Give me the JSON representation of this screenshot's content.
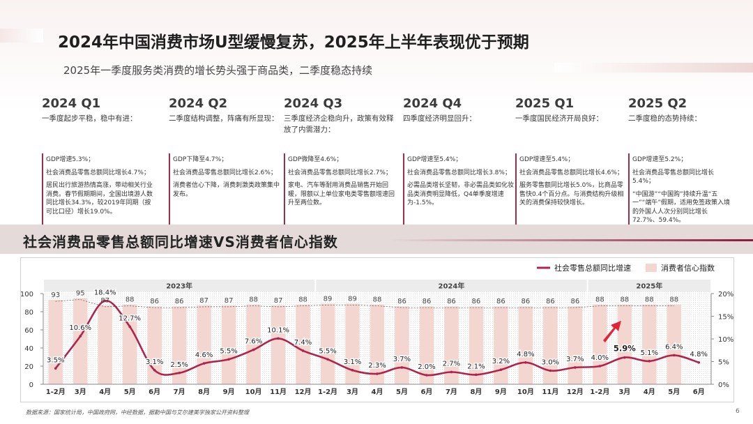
{
  "header": {
    "title": "2024年中国消费市场U型缓慢复苏，2025年上半年表现优于预期",
    "subtitle": "2025年一季度服务类消费的增长势头强于商品类，二季度稳态持续"
  },
  "quarters": [
    {
      "title": "2024 Q1",
      "lead": "一季度起步平稳，稳中有进：",
      "points": [
        "GDP增速5.3%；",
        "社会消费品零售总额同比增长4.7%；",
        "居民出行旅游热情高涨，带动相关行业消费。春节假期期间，全国出境游人数同比增长34.3%，较2019年同期（按可比口径）增长19.0%。"
      ]
    },
    {
      "title": "2024 Q2",
      "lead": "二季度结构调整，阵痛有所显现：",
      "points": [
        "GDP下降至4.7%；",
        "社会消费品零售总额同比增长2.6%；",
        "消费者信心下降，消费刺激类政策集中发布。"
      ]
    },
    {
      "title": "2024 Q3",
      "lead": "三季度经济企稳向升，政策有效释放了内需潜力：",
      "points": [
        "GDP微降至4.6%；",
        "社会消费品零售总额同比增长2.7%；",
        "家电、汽车等耐用消费品销售开始回暖，限额以上单位家电类零售额增速回升至两位数。"
      ]
    },
    {
      "title": "2024 Q4",
      "lead": "四季度经济明显回升：",
      "points": [
        "GDP增速至5.4%；",
        "社会消费品零售总额同比增长3.8%；",
        "必需品类增长坚韧，非必需品类如化妆品类消费明显降低，Q4单季度增速为-1.5%。"
      ]
    },
    {
      "title": "2025 Q1",
      "lead": "一季度国民经济开局良好：",
      "points": [
        "GDP增速至5.4%；",
        "社会消费品零售总额同比增长4.6%；",
        "服务零售额同比增长5.0%，比商品零售快0.4个百分点。与消费结构升级相关的消费保持较快增长。"
      ]
    },
    {
      "title": "2025 Q2",
      "lead": "二季度稳的态势持续：",
      "points": [
        "GDP增速至5.2%；",
        "社会消费品零售总额同比增长5.4%；",
        "“中国游”“中国购”持续升温“五一”“端午”假期，适用免签政策入境的外国人人次分别同比增长72.7%、59.4%。"
      ]
    }
  ],
  "chart_heading": "社会消费品零售总额同比增速VS消费者信心指数",
  "source": "数据来源：国家统计局，中国政府网，中经数据，据勤中国与艾尔建美学独家公开资料整理",
  "page_number": "6",
  "colors": {
    "line": "#b0244c",
    "bar": "#f3d6d0",
    "accent": "#8a1a3a",
    "arrow": "#e0243a"
  },
  "chart_data": {
    "type": "bar",
    "categories": [
      "1-2月",
      "3月",
      "4月",
      "5月",
      "6月",
      "7月",
      "8月",
      "9月",
      "10月",
      "11月",
      "12月",
      "1-2月",
      "3月",
      "4月",
      "5月",
      "6月",
      "7月",
      "8月",
      "9月",
      "10月",
      "11月",
      "12月",
      "1-2月",
      "3月",
      "4月",
      "5月",
      "6月"
    ],
    "year_groups": [
      {
        "label": "2023年",
        "from": 0,
        "to": 10
      },
      {
        "label": "2024年",
        "from": 11,
        "to": 21
      },
      {
        "label": "2025年",
        "from": 22,
        "to": 26
      }
    ],
    "series": [
      {
        "name": "消费者信心指数",
        "type": "bar",
        "axis": "left",
        "values": [
          93,
          95,
          87,
          88,
          86,
          86,
          87,
          87,
          88,
          87,
          88,
          89,
          89,
          88,
          86,
          86,
          86,
          86,
          86,
          86,
          86,
          86,
          88,
          88,
          88,
          88,
          null
        ]
      },
      {
        "name": "社会零售总额同比增速",
        "type": "line",
        "axis": "right",
        "unit": "%",
        "values": [
          3.5,
          10.6,
          18.4,
          12.7,
          3.1,
          2.5,
          4.6,
          5.5,
          7.6,
          10.1,
          7.4,
          5.5,
          3.1,
          2.3,
          3.7,
          2.0,
          2.7,
          2.1,
          3.2,
          4.8,
          3.0,
          3.7,
          4.0,
          5.9,
          5.1,
          6.4,
          4.8
        ]
      }
    ],
    "ylim_left": [
      0,
      100
    ],
    "yticks_left": [
      "0",
      "20",
      "40",
      "60",
      "80",
      "100"
    ],
    "ylim_right": [
      0,
      20
    ],
    "yticks_right": [
      "0%",
      "5%",
      "10%",
      "15%",
      "20%"
    ],
    "highlight_label_index": 23,
    "legend_position": "top-right"
  }
}
